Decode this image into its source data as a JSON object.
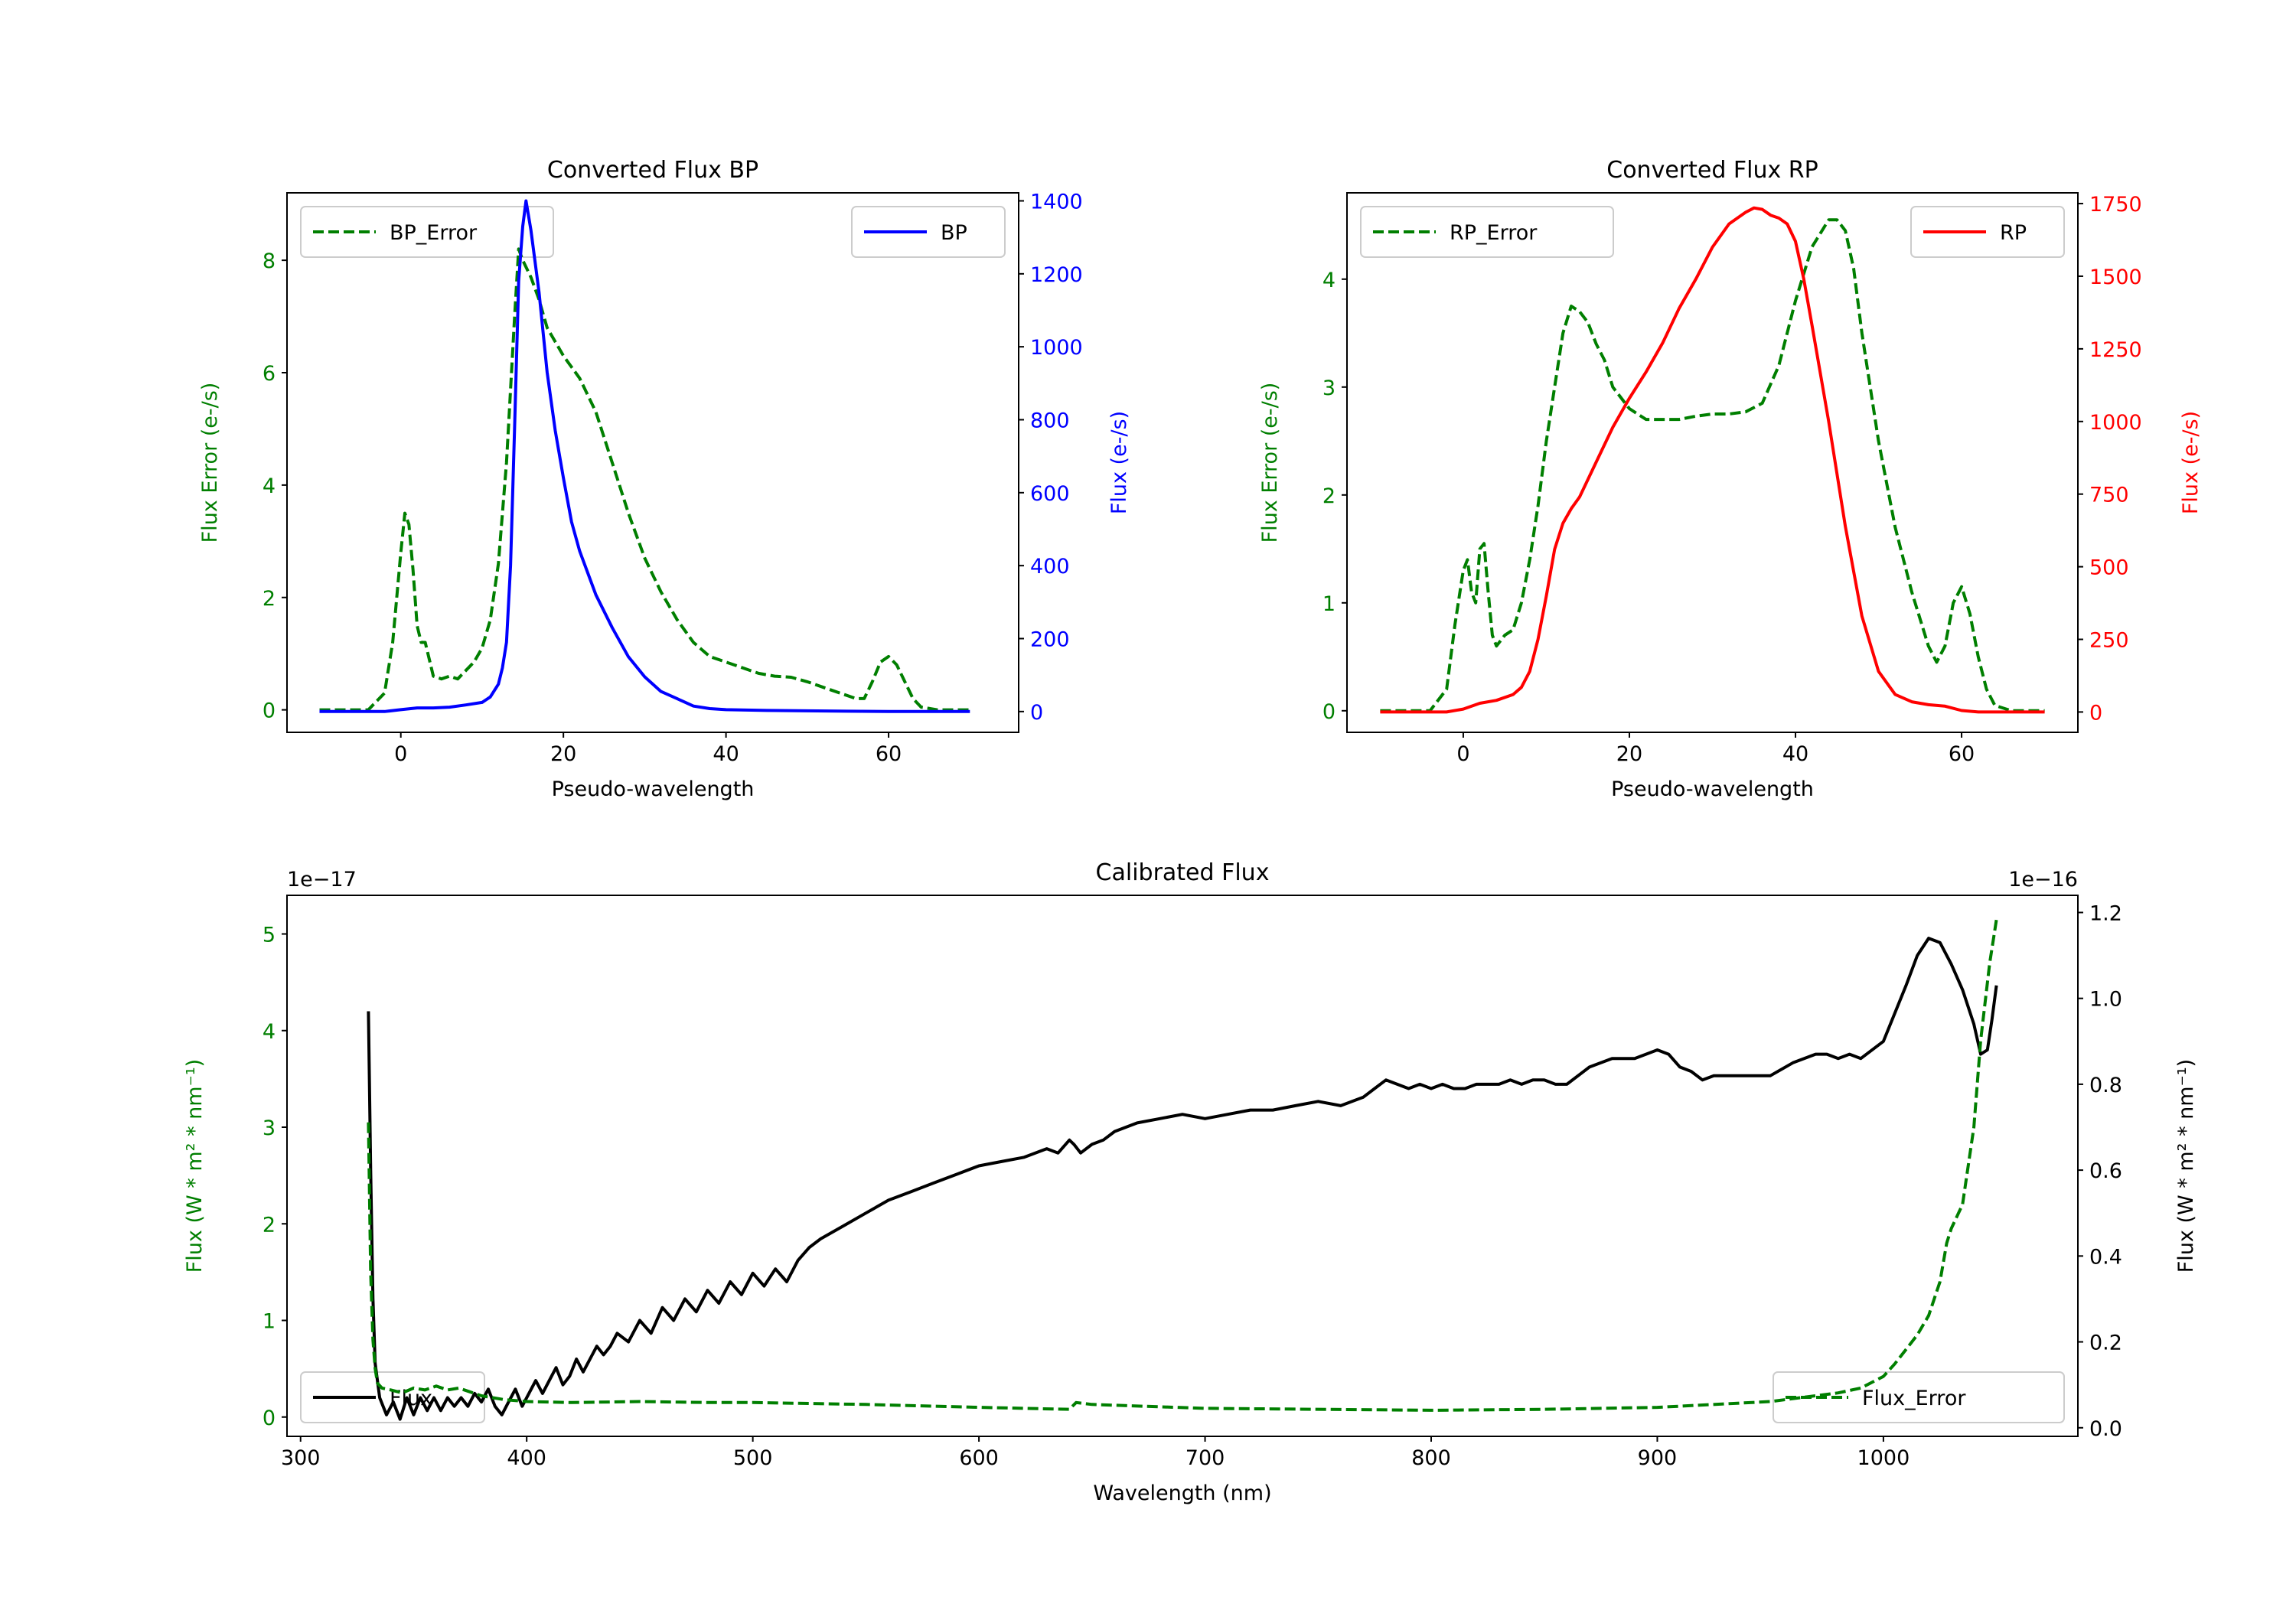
{
  "colors": {
    "green": "#007f00",
    "blue": "#0000ff",
    "red": "#ff0000",
    "black": "#000000"
  },
  "chart_data": [
    {
      "type": "line",
      "title": "Converted Flux BP",
      "xlabel": "Pseudo-wavelength",
      "xlim": [
        -14,
        76
      ],
      "xticks": [
        0,
        20,
        40,
        60
      ],
      "y_left": {
        "label": "Flux Error (e-/s)",
        "lim": [
          -0.4,
          9.2
        ],
        "ticks": [
          0,
          2,
          4,
          6,
          8
        ]
      },
      "y_right": {
        "label": "Flux (e-/s)",
        "lim": [
          -57,
          1422
        ],
        "ticks": [
          0,
          200,
          400,
          600,
          800,
          1000,
          1200,
          1400
        ]
      },
      "legend_left": {
        "label": "BP_Error",
        "position": "upper-left"
      },
      "legend_right": {
        "label": "BP",
        "position": "upper-right"
      },
      "series": [
        {
          "name": "BP_Error",
          "axis": "left",
          "style": "dashed",
          "color": "#007f00",
          "x": [
            -10,
            -4,
            -2,
            -1,
            0,
            0.5,
            1,
            1.5,
            2,
            2.5,
            3,
            3.5,
            4,
            5,
            6,
            7,
            8,
            9,
            10,
            11,
            12,
            13,
            14,
            14.5,
            15,
            16,
            17,
            18,
            20,
            22,
            24,
            26,
            28,
            30,
            32,
            34,
            36,
            38,
            40,
            42,
            44,
            46,
            48,
            50,
            52,
            54,
            56,
            57,
            58,
            59,
            60,
            61,
            62,
            63,
            64,
            66,
            70
          ],
          "y": [
            0,
            0,
            0.3,
            1.2,
            2.8,
            3.5,
            3.3,
            2.5,
            1.5,
            1.2,
            1.2,
            0.9,
            0.6,
            0.55,
            0.6,
            0.55,
            0.7,
            0.85,
            1.1,
            1.6,
            2.6,
            4.4,
            7.0,
            8.2,
            8.0,
            7.7,
            7.3,
            6.8,
            6.3,
            5.9,
            5.3,
            4.4,
            3.5,
            2.7,
            2.1,
            1.6,
            1.2,
            0.95,
            0.85,
            0.75,
            0.65,
            0.6,
            0.58,
            0.5,
            0.4,
            0.3,
            0.2,
            0.2,
            0.5,
            0.85,
            0.95,
            0.8,
            0.5,
            0.2,
            0.05,
            0,
            0
          ]
        },
        {
          "name": "BP",
          "axis": "right",
          "style": "solid",
          "color": "#0000ff",
          "x": [
            -10,
            -6,
            -2,
            0,
            2,
            4,
            6,
            8,
            10,
            11,
            12,
            12.5,
            13,
            13.5,
            14,
            14.5,
            15,
            15.4,
            16,
            17,
            18,
            19,
            20,
            21,
            22,
            24,
            26,
            28,
            30,
            32,
            34,
            36,
            38,
            40,
            45,
            50,
            55,
            60,
            65,
            70
          ],
          "y": [
            0,
            0,
            0,
            5,
            10,
            10,
            12,
            18,
            25,
            40,
            75,
            120,
            190,
            400,
            780,
            1180,
            1330,
            1400,
            1320,
            1150,
            930,
            770,
            640,
            520,
            440,
            320,
            230,
            150,
            95,
            55,
            35,
            15,
            8,
            5,
            3,
            2,
            1,
            0,
            0,
            0
          ]
        }
      ]
    },
    {
      "type": "line",
      "title": "Converted Flux RP",
      "xlabel": "Pseudo-wavelength",
      "xlim": [
        -14,
        74
      ],
      "xticks": [
        0,
        20,
        40,
        60
      ],
      "y_left": {
        "label": "Flux Error (e-/s)",
        "lim": [
          -0.2,
          4.8
        ],
        "ticks": [
          0,
          1,
          2,
          3,
          4
        ]
      },
      "y_right": {
        "label": "Flux (e-/s)",
        "lim": [
          -70,
          1787
        ],
        "ticks": [
          0,
          250,
          500,
          750,
          1000,
          1250,
          1500,
          1750
        ]
      },
      "legend_left": {
        "label": "RP_Error",
        "position": "upper-left"
      },
      "legend_right": {
        "label": "RP",
        "position": "upper-right"
      },
      "series": [
        {
          "name": "RP_Error",
          "axis": "left",
          "style": "dashed",
          "color": "#007f00",
          "x": [
            -10,
            -4,
            -2,
            -1,
            0,
            0.5,
            1,
            1.5,
            2,
            2.5,
            3,
            3.5,
            4,
            5,
            6,
            7,
            8,
            9,
            10,
            11,
            12,
            13,
            14,
            15,
            16,
            17,
            18,
            20,
            22,
            24,
            26,
            28,
            30,
            32,
            34,
            36,
            38,
            40,
            42,
            44,
            45,
            46,
            47,
            48,
            50,
            52,
            54,
            56,
            57,
            58,
            59,
            60,
            61,
            62,
            63,
            64,
            66,
            70
          ],
          "y": [
            0,
            0,
            0.2,
            0.8,
            1.3,
            1.4,
            1.1,
            1.0,
            1.5,
            1.55,
            1.1,
            0.7,
            0.6,
            0.7,
            0.75,
            1.0,
            1.4,
            1.9,
            2.5,
            3.0,
            3.5,
            3.75,
            3.7,
            3.6,
            3.4,
            3.25,
            3.0,
            2.8,
            2.7,
            2.7,
            2.7,
            2.73,
            2.75,
            2.75,
            2.77,
            2.85,
            3.2,
            3.8,
            4.3,
            4.55,
            4.55,
            4.45,
            4.1,
            3.5,
            2.5,
            1.7,
            1.1,
            0.6,
            0.45,
            0.6,
            1.0,
            1.15,
            0.9,
            0.5,
            0.2,
            0.05,
            0,
            0
          ]
        },
        {
          "name": "RP",
          "axis": "right",
          "style": "solid",
          "color": "#ff0000",
          "x": [
            -10,
            -5,
            -2,
            0,
            2,
            4,
            6,
            7,
            8,
            9,
            10,
            11,
            12,
            13,
            14,
            16,
            18,
            20,
            22,
            24,
            26,
            28,
            30,
            32,
            34,
            35,
            36,
            37,
            38,
            39,
            40,
            41,
            42,
            44,
            46,
            48,
            50,
            52,
            54,
            56,
            58,
            60,
            62,
            66,
            70
          ],
          "y": [
            0,
            0,
            0,
            10,
            30,
            40,
            60,
            85,
            140,
            250,
            400,
            560,
            650,
            700,
            740,
            860,
            980,
            1080,
            1170,
            1270,
            1390,
            1490,
            1600,
            1680,
            1720,
            1735,
            1730,
            1710,
            1700,
            1680,
            1620,
            1490,
            1330,
            1000,
            640,
            330,
            140,
            60,
            35,
            25,
            20,
            5,
            0,
            0,
            0
          ]
        }
      ]
    },
    {
      "type": "line",
      "title": "Calibrated Flux",
      "xlabel": "Wavelength (nm)",
      "xlim": [
        294,
        1086
      ],
      "xticks": [
        300,
        400,
        500,
        600,
        700,
        800,
        900,
        1000
      ],
      "y_left": {
        "label": "Flux (W * m² * nm⁻¹)",
        "lim": [
          -0.2,
          5.4
        ],
        "ticks": [
          0,
          1,
          2,
          3,
          4,
          5
        ],
        "offset": "1e−17"
      },
      "y_right": {
        "label": "Flux (W * m² * nm⁻¹)",
        "lim": [
          -0.02,
          1.24
        ],
        "ticks": [
          0.0,
          0.2,
          0.4,
          0.6,
          0.8,
          1.0,
          1.2
        ],
        "offset": "1e−16"
      },
      "legend_left": {
        "label": "Flux",
        "position": "lower-left"
      },
      "legend_right": {
        "label": "Flux_Error",
        "position": "lower-right"
      },
      "series": [
        {
          "name": "Flux",
          "axis": "right",
          "style": "solid",
          "color": "#000000",
          "x": [
            330,
            331,
            332,
            333,
            335,
            338,
            341,
            344,
            347,
            350,
            353,
            356,
            359,
            362,
            365,
            368,
            371,
            374,
            377,
            380,
            383,
            386,
            389,
            392,
            395,
            398,
            401,
            404,
            407,
            410,
            413,
            416,
            419,
            422,
            425,
            428,
            431,
            434,
            437,
            440,
            445,
            450,
            455,
            460,
            465,
            470,
            475,
            480,
            485,
            490,
            495,
            500,
            505,
            510,
            515,
            520,
            525,
            530,
            540,
            550,
            560,
            570,
            580,
            590,
            600,
            610,
            620,
            630,
            635,
            640,
            642,
            645,
            650,
            655,
            660,
            670,
            680,
            690,
            700,
            710,
            720,
            730,
            740,
            750,
            760,
            770,
            775,
            780,
            785,
            790,
            795,
            800,
            805,
            810,
            815,
            820,
            825,
            830,
            835,
            840,
            845,
            850,
            855,
            860,
            870,
            880,
            890,
            900,
            905,
            910,
            915,
            920,
            925,
            930,
            940,
            950,
            960,
            970,
            975,
            980,
            985,
            990,
            1000,
            1010,
            1015,
            1020,
            1025,
            1030,
            1035,
            1040,
            1043,
            1046,
            1048,
            1050
          ],
          "y": [
            0.97,
            0.6,
            0.3,
            0.15,
            0.07,
            0.03,
            0.06,
            0.02,
            0.07,
            0.03,
            0.07,
            0.04,
            0.07,
            0.04,
            0.07,
            0.05,
            0.07,
            0.05,
            0.08,
            0.06,
            0.09,
            0.05,
            0.03,
            0.06,
            0.09,
            0.05,
            0.08,
            0.11,
            0.08,
            0.11,
            0.14,
            0.1,
            0.12,
            0.16,
            0.13,
            0.16,
            0.19,
            0.17,
            0.19,
            0.22,
            0.2,
            0.25,
            0.22,
            0.28,
            0.25,
            0.3,
            0.27,
            0.32,
            0.29,
            0.34,
            0.31,
            0.36,
            0.33,
            0.37,
            0.34,
            0.39,
            0.42,
            0.44,
            0.47,
            0.5,
            0.53,
            0.55,
            0.57,
            0.59,
            0.61,
            0.62,
            0.63,
            0.65,
            0.64,
            0.67,
            0.66,
            0.64,
            0.66,
            0.67,
            0.69,
            0.71,
            0.72,
            0.73,
            0.72,
            0.73,
            0.74,
            0.74,
            0.75,
            0.76,
            0.75,
            0.77,
            0.79,
            0.81,
            0.8,
            0.79,
            0.8,
            0.79,
            0.8,
            0.79,
            0.79,
            0.8,
            0.8,
            0.8,
            0.81,
            0.8,
            0.81,
            0.81,
            0.8,
            0.8,
            0.84,
            0.86,
            0.86,
            0.88,
            0.87,
            0.84,
            0.83,
            0.81,
            0.82,
            0.82,
            0.82,
            0.82,
            0.85,
            0.87,
            0.87,
            0.86,
            0.87,
            0.86,
            0.9,
            1.03,
            1.1,
            1.14,
            1.13,
            1.08,
            1.02,
            0.94,
            0.87,
            0.88,
            0.95,
            1.03
          ]
        },
        {
          "name": "Flux_Error",
          "axis": "left",
          "style": "dashed",
          "color": "#007f00",
          "x": [
            330,
            331,
            332,
            333,
            334,
            336,
            340,
            345,
            350,
            355,
            360,
            365,
            370,
            380,
            390,
            400,
            420,
            450,
            480,
            500,
            550,
            600,
            620,
            640,
            643,
            650,
            700,
            800,
            850,
            900,
            950,
            980,
            990,
            1000,
            1005,
            1010,
            1015,
            1020,
            1025,
            1028,
            1030,
            1035,
            1040,
            1043,
            1045,
            1047,
            1049,
            1050
          ],
          "y": [
            3.05,
            1.5,
            0.8,
            0.5,
            0.35,
            0.3,
            0.28,
            0.25,
            0.3,
            0.28,
            0.32,
            0.28,
            0.3,
            0.22,
            0.18,
            0.16,
            0.15,
            0.16,
            0.15,
            0.15,
            0.13,
            0.1,
            0.09,
            0.08,
            0.15,
            0.13,
            0.09,
            0.07,
            0.08,
            0.1,
            0.16,
            0.25,
            0.3,
            0.42,
            0.55,
            0.7,
            0.85,
            1.05,
            1.4,
            1.8,
            1.95,
            2.2,
            3.0,
            3.9,
            4.3,
            4.7,
            5.0,
            5.15
          ]
        }
      ]
    }
  ]
}
